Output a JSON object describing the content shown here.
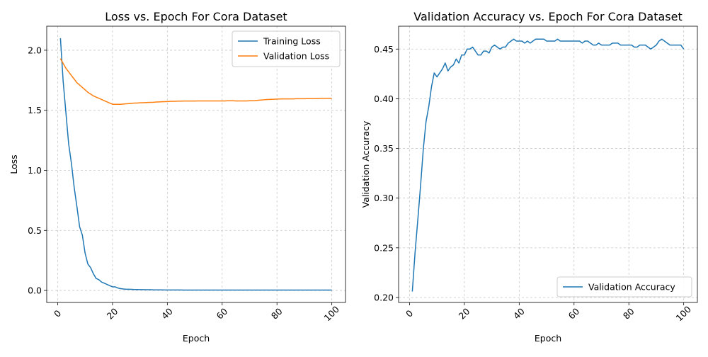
{
  "chart_data": [
    {
      "type": "line",
      "title": "Loss vs. Epoch For Cora Dataset",
      "xlabel": "Epoch",
      "ylabel": "Loss",
      "xlim": [
        -4,
        105
      ],
      "ylim": [
        -0.1,
        2.2
      ],
      "xticks": [
        0,
        20,
        40,
        60,
        80,
        100
      ],
      "xtick_labels": [
        "0",
        "20",
        "40",
        "60",
        "80",
        "100"
      ],
      "yticks": [
        0.0,
        0.5,
        1.0,
        1.5,
        2.0
      ],
      "ytick_labels": [
        "0.0",
        "0.5",
        "1.0",
        "1.5",
        "2.0"
      ],
      "grid": true,
      "legend": "top-right",
      "series": [
        {
          "name": "Training Loss",
          "color": "#1f77b4",
          "x": [
            1,
            2,
            3,
            4,
            5,
            6,
            7,
            8,
            9,
            10,
            11,
            12,
            13,
            14,
            15,
            16,
            17,
            18,
            19,
            20,
            21,
            22,
            23,
            24,
            25,
            26,
            27,
            28,
            29,
            30,
            31,
            32,
            33,
            34,
            35,
            36,
            37,
            38,
            39,
            40,
            41,
            42,
            43,
            44,
            45,
            46,
            47,
            48,
            49,
            50,
            51,
            52,
            53,
            54,
            55,
            56,
            57,
            58,
            59,
            60,
            61,
            62,
            63,
            64,
            65,
            66,
            67,
            68,
            69,
            70,
            71,
            72,
            73,
            74,
            75,
            76,
            77,
            78,
            79,
            80,
            81,
            82,
            83,
            84,
            85,
            86,
            87,
            88,
            89,
            90,
            91,
            92,
            93,
            94,
            95,
            96,
            97,
            98,
            99,
            100
          ],
          "values": [
            2.1,
            1.74,
            1.48,
            1.22,
            1.06,
            0.86,
            0.7,
            0.53,
            0.46,
            0.31,
            0.22,
            0.19,
            0.14,
            0.1,
            0.09,
            0.07,
            0.06,
            0.05,
            0.04,
            0.03,
            0.03,
            0.02,
            0.015,
            0.012,
            0.01,
            0.01,
            0.009,
            0.008,
            0.008,
            0.007,
            0.007,
            0.006,
            0.006,
            0.006,
            0.005,
            0.005,
            0.005,
            0.005,
            0.004,
            0.004,
            0.004,
            0.004,
            0.004,
            0.004,
            0.004,
            0.003,
            0.003,
            0.003,
            0.003,
            0.003,
            0.003,
            0.003,
            0.003,
            0.003,
            0.003,
            0.003,
            0.003,
            0.003,
            0.003,
            0.003,
            0.003,
            0.003,
            0.003,
            0.003,
            0.003,
            0.003,
            0.003,
            0.003,
            0.003,
            0.003,
            0.003,
            0.003,
            0.003,
            0.003,
            0.003,
            0.003,
            0.003,
            0.003,
            0.003,
            0.003,
            0.003,
            0.003,
            0.003,
            0.003,
            0.003,
            0.003,
            0.003,
            0.003,
            0.003,
            0.003,
            0.003,
            0.003,
            0.003,
            0.003,
            0.003,
            0.003,
            0.003,
            0.003,
            0.003,
            0.003
          ]
        },
        {
          "name": "Validation Loss",
          "color": "#ff7f0e",
          "x": [
            1,
            2,
            3,
            4,
            5,
            6,
            7,
            8,
            9,
            10,
            11,
            12,
            13,
            14,
            15,
            16,
            17,
            18,
            19,
            20,
            21,
            22,
            23,
            24,
            25,
            26,
            27,
            28,
            29,
            30,
            31,
            32,
            33,
            34,
            35,
            36,
            37,
            38,
            39,
            40,
            41,
            42,
            43,
            44,
            45,
            46,
            47,
            48,
            49,
            50,
            51,
            52,
            53,
            54,
            55,
            56,
            57,
            58,
            59,
            60,
            61,
            62,
            63,
            64,
            65,
            66,
            67,
            68,
            69,
            70,
            71,
            72,
            73,
            74,
            75,
            76,
            77,
            78,
            79,
            80,
            81,
            82,
            83,
            84,
            85,
            86,
            87,
            88,
            89,
            90,
            91,
            92,
            93,
            94,
            95,
            96,
            97,
            98,
            99,
            100
          ],
          "values": [
            1.93,
            1.89,
            1.85,
            1.82,
            1.79,
            1.76,
            1.73,
            1.71,
            1.69,
            1.67,
            1.65,
            1.635,
            1.62,
            1.61,
            1.6,
            1.59,
            1.58,
            1.57,
            1.56,
            1.55,
            1.55,
            1.55,
            1.55,
            1.552,
            1.554,
            1.556,
            1.558,
            1.56,
            1.56,
            1.562,
            1.563,
            1.564,
            1.565,
            1.566,
            1.567,
            1.569,
            1.57,
            1.571,
            1.572,
            1.573,
            1.574,
            1.575,
            1.575,
            1.576,
            1.576,
            1.577,
            1.577,
            1.577,
            1.577,
            1.577,
            1.578,
            1.578,
            1.578,
            1.578,
            1.578,
            1.578,
            1.578,
            1.578,
            1.578,
            1.578,
            1.578,
            1.579,
            1.579,
            1.579,
            1.578,
            1.578,
            1.578,
            1.578,
            1.578,
            1.579,
            1.58,
            1.581,
            1.583,
            1.585,
            1.587,
            1.589,
            1.59,
            1.591,
            1.592,
            1.593,
            1.594,
            1.595,
            1.595,
            1.595,
            1.595,
            1.595,
            1.596,
            1.596,
            1.596,
            1.596,
            1.597,
            1.597,
            1.597,
            1.598,
            1.598,
            1.599,
            1.599,
            1.6,
            1.6,
            1.6
          ]
        }
      ]
    },
    {
      "type": "line",
      "title": "Validation Accuracy vs. Epoch For Cora Dataset",
      "xlabel": "Epoch",
      "ylabel": "Validation Accuracy",
      "xlim": [
        -4,
        105
      ],
      "ylim": [
        0.195,
        0.473
      ],
      "xticks": [
        0,
        20,
        40,
        60,
        80,
        100
      ],
      "xtick_labels": [
        "0",
        "20",
        "40",
        "60",
        "80",
        "100"
      ],
      "yticks": [
        0.2,
        0.25,
        0.3,
        0.35,
        0.4,
        0.45
      ],
      "ytick_labels": [
        "0.20",
        "0.25",
        "0.30",
        "0.35",
        "0.40",
        "0.45"
      ],
      "grid": true,
      "legend": "bottom-right",
      "series": [
        {
          "name": "Validation Accuracy",
          "color": "#1f77b4",
          "x": [
            1,
            2,
            3,
            4,
            5,
            6,
            7,
            8,
            9,
            10,
            11,
            12,
            13,
            14,
            15,
            16,
            17,
            18,
            19,
            20,
            21,
            22,
            23,
            24,
            25,
            26,
            27,
            28,
            29,
            30,
            31,
            32,
            33,
            34,
            35,
            36,
            37,
            38,
            39,
            40,
            41,
            42,
            43,
            44,
            45,
            46,
            47,
            48,
            49,
            50,
            51,
            52,
            53,
            54,
            55,
            56,
            57,
            58,
            59,
            60,
            61,
            62,
            63,
            64,
            65,
            66,
            67,
            68,
            69,
            70,
            71,
            72,
            73,
            74,
            75,
            76,
            77,
            78,
            79,
            80,
            81,
            82,
            83,
            84,
            85,
            86,
            87,
            88,
            89,
            90,
            91,
            92,
            93,
            94,
            95,
            96,
            97,
            98,
            99,
            100
          ],
          "values": [
            0.206,
            0.245,
            0.278,
            0.312,
            0.349,
            0.377,
            0.392,
            0.412,
            0.426,
            0.422,
            0.426,
            0.43,
            0.436,
            0.428,
            0.432,
            0.434,
            0.44,
            0.436,
            0.444,
            0.444,
            0.45,
            0.45,
            0.452,
            0.448,
            0.444,
            0.444,
            0.448,
            0.448,
            0.446,
            0.452,
            0.454,
            0.452,
            0.45,
            0.452,
            0.452,
            0.456,
            0.458,
            0.46,
            0.458,
            0.458,
            0.458,
            0.456,
            0.458,
            0.456,
            0.458,
            0.46,
            0.46,
            0.46,
            0.46,
            0.458,
            0.458,
            0.458,
            0.458,
            0.46,
            0.458,
            0.458,
            0.458,
            0.458,
            0.458,
            0.458,
            0.458,
            0.458,
            0.456,
            0.458,
            0.458,
            0.456,
            0.454,
            0.454,
            0.456,
            0.454,
            0.454,
            0.454,
            0.454,
            0.456,
            0.456,
            0.456,
            0.454,
            0.454,
            0.454,
            0.454,
            0.454,
            0.452,
            0.452,
            0.454,
            0.454,
            0.454,
            0.452,
            0.45,
            0.452,
            0.454,
            0.458,
            0.46,
            0.458,
            0.456,
            0.454,
            0.454,
            0.454,
            0.454,
            0.454,
            0.45
          ]
        }
      ]
    }
  ]
}
